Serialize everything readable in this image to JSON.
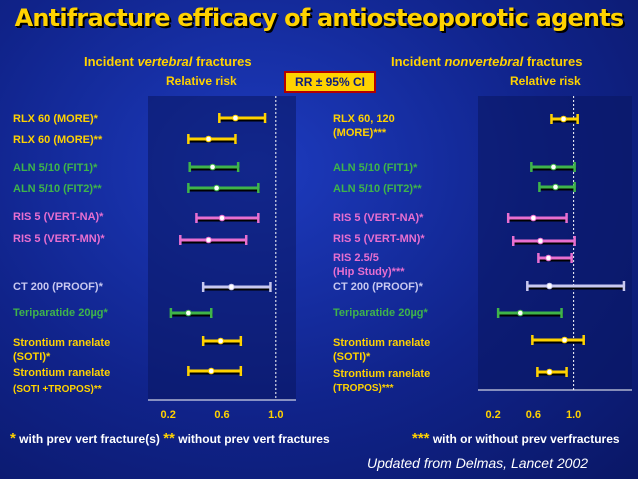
{
  "title": "Antifracture efficacy of antiosteoporotic agents",
  "ci_box": "RR ± 95% CI",
  "colors": {
    "yellow": "#ffd200",
    "green": "#3fb44a",
    "pink": "#e86fd0",
    "lavender": "#c8c8f0",
    "white": "#ffffff",
    "background": "#10238a"
  },
  "left_panel": {
    "heading_pre": "Incident ",
    "heading_em": "vertebral",
    "heading_post": " fractures",
    "subheading": "Relative risk",
    "axis_ticks": [
      "0.2",
      "0.6",
      "1.0"
    ],
    "rows": [
      {
        "label": "RLX 60 (MORE)*",
        "color": "yellow",
        "low": 0.58,
        "point": 0.7,
        "high": 0.92
      },
      {
        "label": "RLX 60 (MORE)**",
        "color": "yellow",
        "low": 0.35,
        "point": 0.5,
        "high": 0.7
      },
      {
        "label": "ALN 5/10 (FIT1)*",
        "color": "green",
        "low": 0.36,
        "point": 0.53,
        "high": 0.72
      },
      {
        "label": "ALN 5/10 (FIT2)**",
        "color": "green",
        "low": 0.35,
        "point": 0.56,
        "high": 0.87
      },
      {
        "label": "RIS 5 (VERT-NA)*",
        "color": "pink",
        "low": 0.41,
        "point": 0.6,
        "high": 0.87
      },
      {
        "label": "RIS 5 (VERT-MN)*",
        "color": "pink",
        "low": 0.29,
        "point": 0.5,
        "high": 0.78
      },
      {
        "label": "CT 200 (PROOF)*",
        "color": "lavender",
        "low": 0.46,
        "point": 0.67,
        "high": 0.96
      },
      {
        "label": "Teriparatide 20µg*",
        "color": "green",
        "low": 0.22,
        "point": 0.35,
        "high": 0.52
      },
      {
        "label": "Strontium ranelate (SOTI)*",
        "color": "yellow",
        "low": 0.46,
        "point": 0.59,
        "high": 0.74
      },
      {
        "label": "Strontium ranelate (SOTI +TROPOS)**",
        "color": "yellow",
        "low": 0.35,
        "point": 0.52,
        "high": 0.74
      }
    ]
  },
  "right_panel": {
    "heading_pre": "Incident ",
    "heading_em": "nonvertebral",
    "heading_post": " fractures",
    "subheading": "Relative risk",
    "axis_ticks": [
      "0.2",
      "0.6",
      "1.0"
    ],
    "rows": [
      {
        "label": "RLX 60, 120 (MORE)***",
        "color": "yellow",
        "low": 0.78,
        "point": 0.9,
        "high": 1.04
      },
      {
        "label": "ALN 5/10 (FIT1)*",
        "color": "green",
        "low": 0.58,
        "point": 0.8,
        "high": 1.01
      },
      {
        "label": "ALN 5/10 (FIT2)**",
        "color": "green",
        "low": 0.66,
        "point": 0.82,
        "high": 1.01
      },
      {
        "label": "RIS 5 (VERT-NA)*",
        "color": "pink",
        "low": 0.35,
        "point": 0.6,
        "high": 0.93
      },
      {
        "label": "RIS 5 (VERT-MN)*",
        "color": "pink",
        "low": 0.4,
        "point": 0.67,
        "high": 1.01
      },
      {
        "label": "RIS 2.5/5 (Hip Study)***",
        "color": "pink",
        "low": 0.65,
        "point": 0.75,
        "high": 0.98
      },
      {
        "label": "CT 200 (PROOF)*",
        "color": "lavender",
        "low": 0.54,
        "point": 0.76,
        "high": 1.5
      },
      {
        "label": "Teriparatide 20µg*",
        "color": "green",
        "low": 0.25,
        "point": 0.47,
        "high": 0.88
      },
      {
        "label": "Strontium ranelate (SOTI)*",
        "color": "yellow",
        "low": 0.59,
        "point": 0.91,
        "high": 1.1
      },
      {
        "label": "Strontium ranelate (TROPOS)***",
        "color": "yellow",
        "low": 0.64,
        "point": 0.76,
        "high": 0.93
      }
    ]
  },
  "footnote_left": {
    "star1": "*",
    "text1": " with prev vert fracture(s) ",
    "star2": "**",
    "text2": " without prev vert fractures"
  },
  "footnote_right": {
    "star": "***",
    "text": " with or without prev verfractures"
  },
  "source": "Updated from Delmas, Lancet 2002"
}
